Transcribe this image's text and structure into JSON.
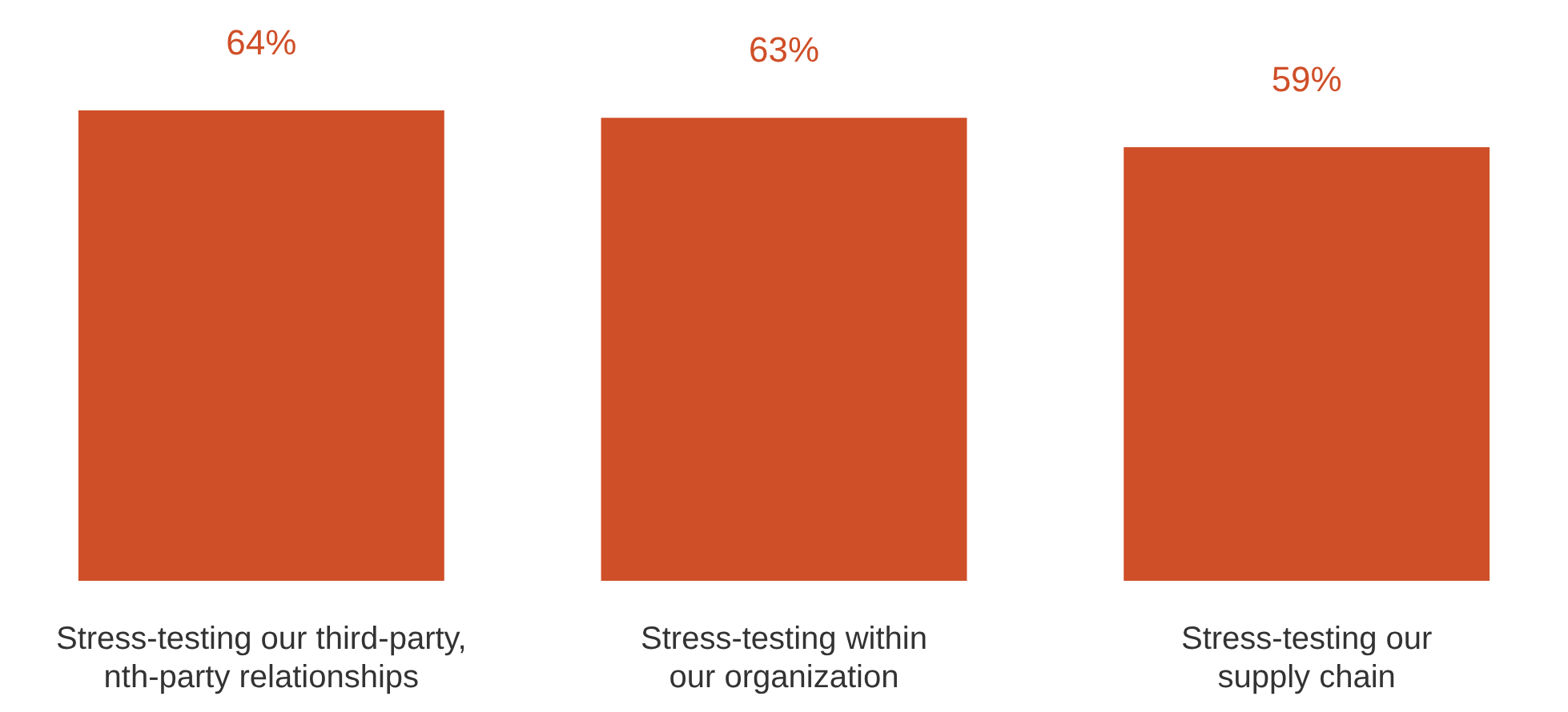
{
  "chart_data": {
    "type": "bar",
    "categories": [
      "Stress-testing our third-party, nth-party relationships",
      "Stress-testing within our organization",
      "Stress-testing our supply chain"
    ],
    "values": [
      64,
      63,
      59
    ],
    "value_labels": [
      "64%",
      "63%",
      "59%"
    ],
    "color": "#cf4f28"
  }
}
